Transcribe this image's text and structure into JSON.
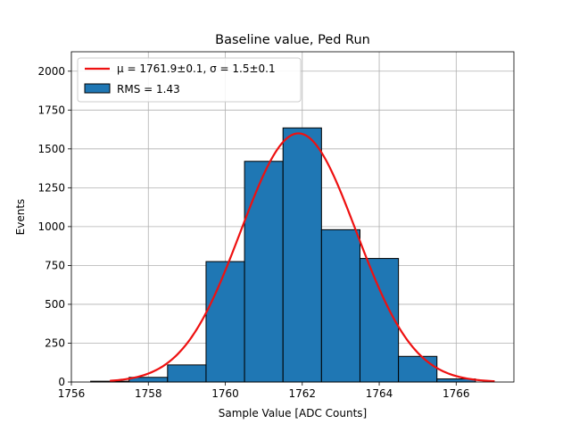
{
  "chart_data": {
    "type": "bar",
    "title": "Baseline value, Ped Run",
    "xlabel": "Sample Value [ADC Counts]",
    "ylabel": "Events",
    "xlim": [
      1756,
      1767.5
    ],
    "ylim": [
      0,
      2125
    ],
    "xticks": [
      1756,
      1758,
      1760,
      1762,
      1764,
      1766
    ],
    "yticks": [
      0,
      250,
      500,
      750,
      1000,
      1250,
      1500,
      1750,
      2000
    ],
    "grid": true,
    "legend_position": "upper left",
    "histogram": {
      "name": "RMS = 1.43",
      "color": "#1f77b4",
      "edgecolor": "#000000",
      "bin_edges": [
        1756.5,
        1757.5,
        1758.5,
        1759.5,
        1760.5,
        1761.5,
        1762.5,
        1763.5,
        1764.5,
        1765.5,
        1766.5
      ],
      "counts": [
        5,
        30,
        110,
        775,
        1420,
        1635,
        980,
        795,
        165,
        20
      ]
    },
    "fit": {
      "name": "μ = 1761.9±0.1, σ = 1.5±0.1",
      "color": "#ee1111",
      "type": "gaussian",
      "amplitude": 1600,
      "mu": 1761.9,
      "sigma": 1.5,
      "x_range": [
        1757,
        1767
      ]
    }
  }
}
